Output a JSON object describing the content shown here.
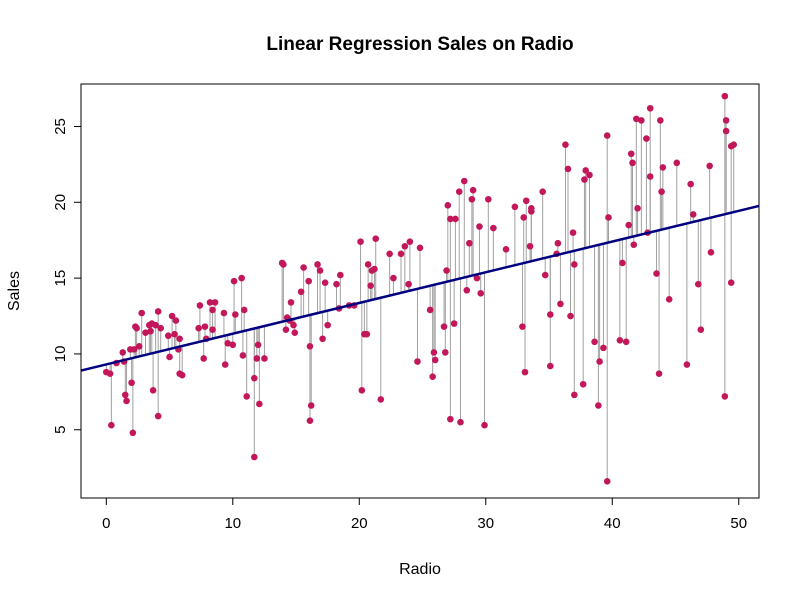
{
  "chart_data": {
    "type": "scatter",
    "title": "Linear Regression Sales on Radio",
    "xlabel": "Radio",
    "ylabel": "Sales",
    "xlim": [
      -2,
      51.6
    ],
    "ylim": [
      0.5,
      27.8
    ],
    "x_ticks": [
      0,
      10,
      20,
      30,
      40,
      50
    ],
    "y_ticks": [
      5,
      10,
      15,
      20,
      25
    ],
    "grid": false,
    "legend": "none",
    "point_color": "#c2185b",
    "residual_color": "#a0a0a0",
    "line_color": "#000080",
    "regression": {
      "intercept": 9.31,
      "slope": 0.2025
    },
    "points": [
      [
        0.0,
        8.8
      ],
      [
        0.3,
        8.7
      ],
      [
        0.4,
        5.3
      ],
      [
        0.8,
        9.4
      ],
      [
        1.3,
        10.1
      ],
      [
        1.4,
        9.5
      ],
      [
        1.5,
        7.3
      ],
      [
        1.6,
        6.9
      ],
      [
        1.9,
        10.3
      ],
      [
        2.0,
        8.1
      ],
      [
        2.1,
        4.8
      ],
      [
        2.2,
        10.3
      ],
      [
        2.3,
        11.8
      ],
      [
        2.4,
        11.7
      ],
      [
        2.6,
        10.5
      ],
      [
        2.8,
        12.7
      ],
      [
        3.1,
        11.4
      ],
      [
        3.4,
        11.9
      ],
      [
        3.5,
        11.5
      ],
      [
        3.6,
        12.0
      ],
      [
        3.7,
        7.6
      ],
      [
        3.9,
        11.9
      ],
      [
        4.1,
        12.8
      ],
      [
        4.1,
        5.9
      ],
      [
        4.3,
        11.7
      ],
      [
        4.9,
        11.2
      ],
      [
        5.0,
        9.8
      ],
      [
        5.2,
        12.5
      ],
      [
        5.4,
        11.3
      ],
      [
        5.5,
        12.2
      ],
      [
        5.7,
        10.3
      ],
      [
        5.8,
        8.7
      ],
      [
        5.8,
        11.0
      ],
      [
        6.0,
        8.6
      ],
      [
        7.3,
        11.7
      ],
      [
        7.4,
        13.2
      ],
      [
        7.7,
        9.7
      ],
      [
        7.8,
        11.8
      ],
      [
        7.9,
        11.0
      ],
      [
        8.2,
        13.4
      ],
      [
        8.4,
        11.6
      ],
      [
        8.4,
        12.9
      ],
      [
        8.6,
        13.4
      ],
      [
        9.3,
        12.7
      ],
      [
        9.4,
        9.3
      ],
      [
        9.6,
        10.7
      ],
      [
        10.0,
        10.6
      ],
      [
        10.1,
        14.8
      ],
      [
        10.2,
        12.6
      ],
      [
        10.7,
        15.0
      ],
      [
        10.8,
        9.9
      ],
      [
        10.9,
        12.9
      ],
      [
        11.1,
        7.2
      ],
      [
        11.7,
        8.4
      ],
      [
        11.7,
        3.2
      ],
      [
        11.9,
        9.7
      ],
      [
        12.0,
        10.6
      ],
      [
        12.1,
        6.7
      ],
      [
        12.5,
        9.7
      ],
      [
        13.9,
        16.0
      ],
      [
        14.0,
        15.9
      ],
      [
        14.2,
        11.6
      ],
      [
        14.3,
        12.4
      ],
      [
        14.5,
        12.2
      ],
      [
        14.6,
        13.4
      ],
      [
        14.8,
        11.9
      ],
      [
        14.9,
        11.4
      ],
      [
        15.4,
        14.1
      ],
      [
        15.6,
        15.7
      ],
      [
        16.0,
        14.8
      ],
      [
        16.1,
        10.5
      ],
      [
        16.1,
        5.6
      ],
      [
        16.2,
        6.6
      ],
      [
        16.7,
        15.9
      ],
      [
        16.9,
        15.5
      ],
      [
        17.1,
        11.0
      ],
      [
        17.3,
        14.7
      ],
      [
        17.5,
        11.9
      ],
      [
        18.2,
        14.6
      ],
      [
        18.4,
        13.0
      ],
      [
        18.5,
        15.2
      ],
      [
        19.2,
        13.2
      ],
      [
        19.6,
        13.2
      ],
      [
        20.1,
        17.4
      ],
      [
        20.2,
        7.6
      ],
      [
        20.4,
        11.3
      ],
      [
        20.6,
        11.3
      ],
      [
        20.7,
        15.9
      ],
      [
        20.9,
        14.5
      ],
      [
        21.0,
        15.5
      ],
      [
        21.2,
        15.6
      ],
      [
        21.3,
        17.6
      ],
      [
        21.7,
        7.0
      ],
      [
        22.4,
        16.6
      ],
      [
        22.7,
        15.0
      ],
      [
        23.3,
        16.6
      ],
      [
        23.6,
        17.1
      ],
      [
        23.9,
        14.6
      ],
      [
        24.0,
        17.4
      ],
      [
        24.6,
        9.5
      ],
      [
        24.8,
        17.0
      ],
      [
        25.6,
        12.9
      ],
      [
        25.8,
        8.5
      ],
      [
        25.9,
        10.1
      ],
      [
        26.0,
        9.6
      ],
      [
        26.7,
        11.8
      ],
      [
        26.8,
        10.1
      ],
      [
        26.9,
        15.5
      ],
      [
        27.0,
        19.8
      ],
      [
        27.2,
        5.7
      ],
      [
        27.2,
        18.9
      ],
      [
        27.5,
        12.0
      ],
      [
        27.6,
        18.9
      ],
      [
        27.9,
        20.7
      ],
      [
        28.0,
        5.5
      ],
      [
        28.3,
        21.4
      ],
      [
        28.5,
        14.2
      ],
      [
        28.7,
        17.3
      ],
      [
        28.9,
        20.2
      ],
      [
        29.0,
        20.8
      ],
      [
        29.3,
        15.0
      ],
      [
        29.5,
        18.4
      ],
      [
        29.6,
        14.0
      ],
      [
        29.9,
        5.3
      ],
      [
        30.2,
        20.2
      ],
      [
        30.6,
        18.3
      ],
      [
        31.6,
        16.9
      ],
      [
        32.3,
        19.7
      ],
      [
        32.9,
        11.8
      ],
      [
        33.0,
        19.0
      ],
      [
        33.1,
        8.8
      ],
      [
        33.2,
        20.1
      ],
      [
        33.5,
        17.1
      ],
      [
        33.6,
        19.4
      ],
      [
        33.6,
        19.6
      ],
      [
        34.5,
        20.7
      ],
      [
        34.7,
        15.2
      ],
      [
        35.1,
        12.6
      ],
      [
        35.1,
        9.2
      ],
      [
        35.6,
        16.6
      ],
      [
        35.7,
        17.3
      ],
      [
        35.9,
        13.3
      ],
      [
        36.3,
        23.8
      ],
      [
        36.5,
        22.2
      ],
      [
        36.7,
        12.5
      ],
      [
        36.9,
        18.0
      ],
      [
        37.0,
        15.9
      ],
      [
        37.0,
        7.3
      ],
      [
        37.7,
        8.0
      ],
      [
        37.8,
        21.5
      ],
      [
        37.9,
        22.1
      ],
      [
        38.2,
        21.8
      ],
      [
        38.6,
        10.8
      ],
      [
        38.9,
        6.6
      ],
      [
        39.0,
        9.5
      ],
      [
        39.3,
        10.4
      ],
      [
        39.6,
        24.4
      ],
      [
        39.6,
        1.6
      ],
      [
        39.7,
        19.0
      ],
      [
        40.6,
        10.9
      ],
      [
        40.8,
        16.0
      ],
      [
        41.1,
        10.8
      ],
      [
        41.3,
        18.5
      ],
      [
        41.5,
        23.2
      ],
      [
        41.6,
        22.6
      ],
      [
        41.7,
        17.2
      ],
      [
        41.9,
        25.5
      ],
      [
        42.0,
        19.6
      ],
      [
        42.3,
        25.4
      ],
      [
        42.7,
        24.2
      ],
      [
        42.8,
        18.0
      ],
      [
        43.0,
        26.2
      ],
      [
        43.0,
        21.7
      ],
      [
        43.5,
        15.3
      ],
      [
        43.7,
        8.7
      ],
      [
        43.8,
        25.4
      ],
      [
        43.9,
        20.7
      ],
      [
        44.0,
        22.3
      ],
      [
        44.5,
        13.6
      ],
      [
        45.1,
        22.6
      ],
      [
        45.9,
        9.3
      ],
      [
        46.2,
        21.2
      ],
      [
        46.4,
        19.2
      ],
      [
        46.8,
        14.6
      ],
      [
        47.0,
        11.6
      ],
      [
        47.7,
        22.4
      ],
      [
        47.8,
        16.7
      ],
      [
        48.9,
        7.2
      ],
      [
        48.9,
        27.0
      ],
      [
        49.0,
        25.4
      ],
      [
        49.0,
        24.7
      ],
      [
        49.4,
        14.7
      ],
      [
        49.4,
        23.7
      ],
      [
        49.6,
        23.8
      ]
    ]
  }
}
